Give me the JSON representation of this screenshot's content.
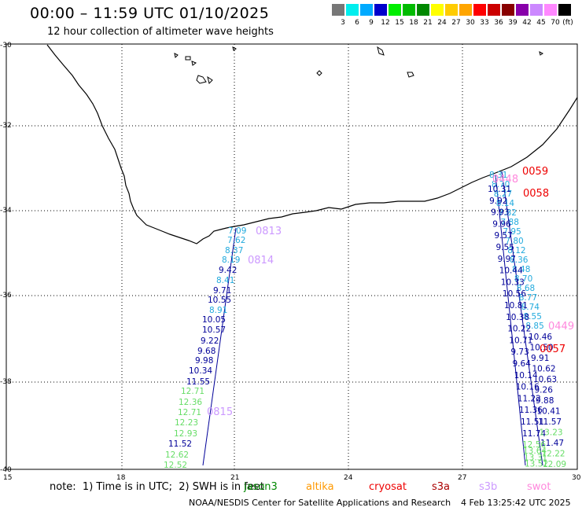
{
  "header": {
    "title": "00:00 – 11:59 UTC 01/10/2025",
    "subtitle": "12 hour collection of altimeter wave heights"
  },
  "legend": {
    "colors": [
      "#777777",
      "#00eeee",
      "#00aaff",
      "#0000cc",
      "#00ee00",
      "#00bb00",
      "#008800",
      "#ffff00",
      "#ffcc00",
      "#ffa500",
      "#ff0000",
      "#cc0000",
      "#880000",
      "#8800aa",
      "#cc88ff",
      "#ff88ff",
      "#000000"
    ],
    "labels": [
      "3",
      "6",
      "9",
      "12",
      "15",
      "18",
      "21",
      "24",
      "27",
      "30",
      "33",
      "36",
      "39",
      "42",
      "45",
      "70",
      "(ft)"
    ]
  },
  "axes": {
    "lat_labels": [
      "-30",
      "-32",
      "-34",
      "-36",
      "-38",
      "-40"
    ],
    "lon_labels": [
      "15",
      "18",
      "21",
      "24",
      "27",
      "30"
    ]
  },
  "tracks": {
    "west_pass_labels": [
      {
        "text": "0813",
        "color": "#cc99ff"
      },
      {
        "text": "0814",
        "color": "#cc99ff"
      },
      {
        "text": "0815",
        "color": "#cc99ff"
      }
    ],
    "west_heights": [
      {
        "v": "7.09",
        "c": "#22aadd"
      },
      {
        "v": "7.62",
        "c": "#22aadd"
      },
      {
        "v": "8.37",
        "c": "#22aadd"
      },
      {
        "v": "8.19",
        "c": "#22aadd"
      },
      {
        "v": "9.42",
        "c": "#000099"
      },
      {
        "v": "8.41",
        "c": "#22aadd"
      },
      {
        "v": "9.71",
        "c": "#000099"
      },
      {
        "v": "10.55",
        "c": "#000099"
      },
      {
        "v": "8.91",
        "c": "#22aadd"
      },
      {
        "v": "10.05",
        "c": "#000099"
      },
      {
        "v": "10.57",
        "c": "#000099"
      },
      {
        "v": "9.22",
        "c": "#000099"
      },
      {
        "v": "9.68",
        "c": "#000099"
      },
      {
        "v": "9.98",
        "c": "#000099"
      },
      {
        "v": "10.34",
        "c": "#000099"
      },
      {
        "v": "11.55",
        "c": "#000099"
      },
      {
        "v": "12.71",
        "c": "#66dd66"
      },
      {
        "v": "12.36",
        "c": "#66dd66"
      },
      {
        "v": "12.71",
        "c": "#66dd66"
      },
      {
        "v": "12.23",
        "c": "#66dd66"
      },
      {
        "v": "12.93",
        "c": "#66dd66"
      },
      {
        "v": "11.52",
        "c": "#000099"
      },
      {
        "v": "12.62",
        "c": "#66dd66"
      },
      {
        "v": "12.52",
        "c": "#66dd66"
      }
    ],
    "east_pass_labels": [
      {
        "text": "0059",
        "color": "#ee0000"
      },
      {
        "text": "0448",
        "color": "#ff88dd"
      },
      {
        "text": "0058",
        "color": "#ee0000"
      },
      {
        "text": "0449",
        "color": "#ff88dd"
      },
      {
        "text": "0057",
        "color": "#ee0000"
      }
    ],
    "east_left_heights": [
      {
        "v": "10.31",
        "c": "#000099"
      },
      {
        "v": "9.92",
        "c": "#000099"
      },
      {
        "v": "9.93",
        "c": "#000099"
      },
      {
        "v": "9.96",
        "c": "#000099"
      },
      {
        "v": "9.57",
        "c": "#000099"
      },
      {
        "v": "9.55",
        "c": "#000099"
      },
      {
        "v": "9.97",
        "c": "#000099"
      },
      {
        "v": "10.44",
        "c": "#000099"
      },
      {
        "v": "10.33",
        "c": "#000099"
      },
      {
        "v": "10.56",
        "c": "#000099"
      },
      {
        "v": "10.81",
        "c": "#000099"
      },
      {
        "v": "10.38",
        "c": "#000099"
      },
      {
        "v": "10.22",
        "c": "#000099"
      },
      {
        "v": "10.71",
        "c": "#000099"
      },
      {
        "v": "9.73",
        "c": "#000099"
      },
      {
        "v": "9.64",
        "c": "#000099"
      },
      {
        "v": "10.14",
        "c": "#000099"
      },
      {
        "v": "10.16",
        "c": "#000099"
      },
      {
        "v": "11.22",
        "c": "#000099"
      },
      {
        "v": "11.36",
        "c": "#000099"
      },
      {
        "v": "11.51",
        "c": "#000099"
      },
      {
        "v": "11.74",
        "c": "#000099"
      }
    ],
    "east_mid_heights": [
      {
        "v": "8.31",
        "c": "#22aadd"
      },
      {
        "v": "8.70",
        "c": "#22aadd"
      },
      {
        "v": "8.27",
        "c": "#22aadd"
      },
      {
        "v": "8.14",
        "c": "#22aadd"
      },
      {
        "v": "7.82",
        "c": "#22aadd"
      },
      {
        "v": "7.88",
        "c": "#22aadd"
      },
      {
        "v": "7.95",
        "c": "#22aadd"
      },
      {
        "v": "7.80",
        "c": "#22aadd"
      },
      {
        "v": "8.12",
        "c": "#22aadd"
      },
      {
        "v": "8.36",
        "c": "#22aadd"
      },
      {
        "v": "8.48",
        "c": "#22aadd"
      },
      {
        "v": "8.70",
        "c": "#22aadd"
      },
      {
        "v": "8.68",
        "c": "#22aadd"
      },
      {
        "v": "8.77",
        "c": "#22aadd"
      },
      {
        "v": "8.74",
        "c": "#22aadd"
      },
      {
        "v": "8.55",
        "c": "#22aadd"
      },
      {
        "v": "8.85",
        "c": "#22aadd"
      }
    ],
    "east_right_heights": [
      {
        "v": "10.46",
        "c": "#000099"
      },
      {
        "v": "10.50",
        "c": "#000099"
      },
      {
        "v": "9.91",
        "c": "#000099"
      },
      {
        "v": "10.62",
        "c": "#000099"
      },
      {
        "v": "10.63",
        "c": "#000099"
      },
      {
        "v": "9.26",
        "c": "#000099"
      },
      {
        "v": "9.88",
        "c": "#000099"
      },
      {
        "v": "10.41",
        "c": "#000099"
      },
      {
        "v": "11.57",
        "c": "#000099"
      },
      {
        "v": "13.23",
        "c": "#66dd66"
      },
      {
        "v": "11.47",
        "c": "#000099"
      },
      {
        "v": "12.22",
        "c": "#66dd66"
      },
      {
        "v": "12.09",
        "c": "#66dd66"
      }
    ],
    "east_bottom_heights": [
      {
        "v": "12.56",
        "c": "#66dd66"
      },
      {
        "v": "13.64",
        "c": "#66dd66"
      },
      {
        "v": "13.31",
        "c": "#66dd66"
      },
      {
        "v": "13.52",
        "c": "#66dd66"
      }
    ]
  },
  "footer": {
    "note": "note:  1) Time is in UTC;  2) SWH is in feet",
    "satellites": [
      {
        "name": "jason3",
        "color": "#008800"
      },
      {
        "name": "altika",
        "color": "#ff9900"
      },
      {
        "name": "cryosat",
        "color": "#ee0000"
      },
      {
        "name": "s3a",
        "color": "#aa0000"
      },
      {
        "name": "s3b",
        "color": "#cc99ff"
      },
      {
        "name": "swot",
        "color": "#ff88dd"
      }
    ],
    "credit": "NOAA/NESDIS Center for Satellite Applications and Research",
    "timestamp": "4 Feb 13:25:42 UTC 2025"
  }
}
